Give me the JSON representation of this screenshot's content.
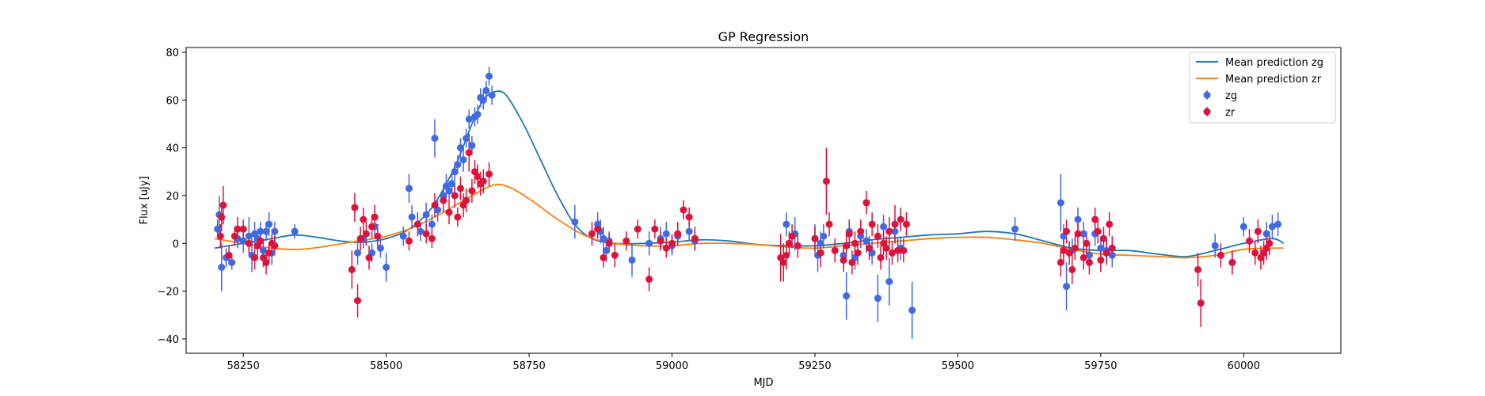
{
  "chart_data": {
    "type": "scatter",
    "title": "GP Regression",
    "xlabel": "MJD",
    "ylabel": "Flux [uJy]",
    "xlim": [
      58150,
      60170
    ],
    "ylim": [
      -46,
      82
    ],
    "xticks": [
      58250,
      58500,
      58750,
      59000,
      59250,
      59500,
      59750,
      60000
    ],
    "yticks": [
      -40,
      -20,
      0,
      20,
      40,
      60,
      80
    ],
    "grid": false,
    "legend_position": "upper right",
    "legend": [
      "Mean prediction zg",
      "Mean prediction zr",
      "zg",
      "zr"
    ],
    "colors": {
      "line_zg": "#1f77b4",
      "line_zr": "#ff7f0e",
      "points_zg": "#4169e1",
      "points_zr": "#dc143c"
    },
    "lines": [
      {
        "name": "Mean prediction zg",
        "x": [
          58200,
          58250,
          58300,
          58340,
          58380,
          58420,
          58460,
          58500,
          58540,
          58580,
          58620,
          58650,
          58670,
          58690,
          58710,
          58740,
          58770,
          58800,
          58830,
          58860,
          58900,
          58950,
          59000,
          59050,
          59100,
          59150,
          59200,
          59250,
          59300,
          59350,
          59400,
          59450,
          59500,
          59550,
          59600,
          59650,
          59700,
          59750,
          59800,
          59850,
          59900,
          59950,
          60000,
          60050,
          60070
        ],
        "y": [
          -2,
          0,
          2,
          3.5,
          2.5,
          1,
          0.5,
          2,
          6,
          15,
          32,
          50,
          60,
          63.5,
          62,
          50,
          35,
          20,
          8,
          2,
          0,
          0,
          0.5,
          1.5,
          1,
          -0.5,
          -1,
          -1,
          0,
          1.5,
          2.5,
          3.5,
          4,
          5,
          4,
          1,
          -2,
          -3,
          -3,
          -4.5,
          -5.5,
          -3,
          0,
          2,
          0
        ]
      },
      {
        "name": "Mean prediction zr",
        "x": [
          58200,
          58250,
          58300,
          58350,
          58400,
          58450,
          58500,
          58550,
          58600,
          58650,
          58690,
          58720,
          58760,
          58800,
          58850,
          58900,
          58950,
          59000,
          59050,
          59100,
          59150,
          59200,
          59250,
          59300,
          59350,
          59400,
          59450,
          59500,
          59550,
          59600,
          59650,
          59700,
          59750,
          59800,
          59850,
          59900,
          59950,
          60000,
          60050,
          60070
        ],
        "y": [
          2,
          0,
          -2,
          -2.5,
          -1,
          1,
          3,
          7,
          13,
          20,
          24.5,
          23,
          17,
          10,
          3,
          0,
          -1,
          -1,
          0,
          0,
          -0.5,
          -1.5,
          -2,
          -1,
          0,
          1,
          2,
          2.5,
          2.5,
          1.5,
          0,
          -2.5,
          -4.5,
          -5,
          -5.5,
          -6,
          -5,
          -2.5,
          -2,
          -2
        ]
      }
    ],
    "series": [
      {
        "name": "zg",
        "x": [
          58205,
          58208,
          58212,
          58220,
          58230,
          58240,
          58250,
          58260,
          58265,
          58270,
          58275,
          58280,
          58285,
          58290,
          58295,
          58300,
          58305,
          58340,
          58450,
          58460,
          58475,
          58480,
          58490,
          58500,
          58530,
          58540,
          58545,
          58560,
          58570,
          58580,
          58585,
          58590,
          58600,
          58605,
          58610,
          58615,
          58620,
          58625,
          58630,
          58635,
          58640,
          58645,
          58650,
          58655,
          58660,
          58665,
          58670,
          58675,
          58680,
          58685,
          58830,
          58870,
          58875,
          58880,
          58885,
          58890,
          58930,
          58960,
          58980,
          58990,
          59000,
          59010,
          59030,
          59040,
          59200,
          59215,
          59250,
          59255,
          59260,
          59265,
          59300,
          59305,
          59310,
          59320,
          59330,
          59340,
          59350,
          59360,
          59370,
          59380,
          59390,
          59400,
          59420,
          59600,
          59680,
          59685,
          59690,
          59700,
          59710,
          59720,
          59730,
          59740,
          59750,
          59760,
          59770,
          59950,
          59980,
          60000,
          60040,
          60050,
          60060
        ],
        "y": [
          6,
          12,
          -10,
          -6,
          -8,
          2,
          1,
          3,
          -5,
          4,
          2,
          5,
          -3,
          5,
          8,
          -4,
          5,
          5,
          -4,
          2,
          -4,
          7,
          -2,
          -10,
          3,
          23,
          11,
          5,
          12,
          8,
          44,
          14,
          20,
          24,
          22,
          25,
          30,
          33,
          40,
          35,
          44,
          52,
          41,
          53,
          54,
          61,
          60,
          64,
          70,
          62,
          9,
          8,
          5,
          2,
          -3,
          1,
          -7,
          0,
          2,
          4,
          -1,
          3,
          5,
          1,
          8,
          4,
          2,
          -5,
          0,
          3,
          -5,
          -22,
          5,
          -6,
          3,
          1,
          -4,
          -23,
          7,
          -16,
          5,
          -2,
          -28,
          6,
          17,
          3,
          -18,
          -3,
          10,
          4,
          -5,
          4,
          -2,
          -3,
          -5,
          -1,
          -8,
          7,
          4,
          7,
          8
        ],
        "yerr": [
          4,
          8,
          10,
          4,
          3,
          4,
          5,
          8,
          7,
          5,
          4,
          4,
          5,
          4,
          5,
          5,
          4,
          3,
          5,
          4,
          4,
          5,
          4,
          6,
          4,
          6,
          5,
          4,
          5,
          4,
          8,
          5,
          4,
          5,
          4,
          4,
          4,
          4,
          4,
          5,
          4,
          4,
          4,
          4,
          4,
          4,
          4,
          4,
          4,
          4,
          7,
          5,
          5,
          5,
          5,
          4,
          7,
          5,
          5,
          5,
          4,
          4,
          4,
          4,
          5,
          7,
          6,
          7,
          5,
          5,
          5,
          10,
          5,
          5,
          5,
          5,
          5,
          10,
          5,
          10,
          5,
          5,
          12,
          5,
          12,
          5,
          10,
          5,
          5,
          5,
          5,
          5,
          5,
          5,
          5,
          5,
          4,
          4,
          5,
          5,
          5
        ]
      },
      {
        "name": "zr",
        "x": [
          58210,
          58212,
          58215,
          58225,
          58235,
          58240,
          58250,
          58260,
          58270,
          58275,
          58280,
          58285,
          58290,
          58295,
          58300,
          58305,
          58440,
          58445,
          58450,
          58455,
          58460,
          58465,
          58470,
          58475,
          58480,
          58485,
          58540,
          58555,
          58570,
          58580,
          58585,
          58600,
          58610,
          58620,
          58625,
          58630,
          58635,
          58640,
          58645,
          58650,
          58655,
          58660,
          58665,
          58670,
          58680,
          58860,
          58870,
          58880,
          58890,
          58900,
          58920,
          58940,
          58960,
          58970,
          58980,
          58990,
          59000,
          59010,
          59020,
          59030,
          59040,
          59190,
          59195,
          59200,
          59205,
          59210,
          59220,
          59250,
          59260,
          59270,
          59275,
          59285,
          59300,
          59305,
          59310,
          59315,
          59320,
          59325,
          59330,
          59340,
          59345,
          59350,
          59360,
          59365,
          59370,
          59375,
          59380,
          59385,
          59390,
          59395,
          59400,
          59405,
          59410,
          59680,
          59685,
          59690,
          59695,
          59700,
          59705,
          59710,
          59720,
          59725,
          59730,
          59740,
          59745,
          59750,
          59755,
          59760,
          59765,
          59770,
          59920,
          59925,
          59960,
          59980,
          60010,
          60020,
          60025,
          60030,
          60035,
          60040,
          60045
        ],
        "y": [
          3,
          11,
          16,
          -5,
          3,
          6,
          6,
          0,
          -6,
          -1,
          1,
          -6,
          -8,
          -4,
          0,
          -1,
          -11,
          15,
          -24,
          2,
          10,
          4,
          -6,
          7,
          11,
          3,
          1,
          8,
          4,
          2,
          16,
          18,
          13,
          20,
          11,
          23,
          16,
          18,
          38,
          22,
          30,
          28,
          25,
          26,
          29,
          4,
          6,
          -6,
          0,
          -5,
          1,
          6,
          -15,
          6,
          1,
          -2,
          0,
          4,
          14,
          11,
          2,
          -6,
          -8,
          -5,
          0,
          3,
          -1,
          2,
          -4,
          26,
          8,
          -3,
          -7,
          -1,
          4,
          -8,
          0,
          -4,
          5,
          17,
          -2,
          8,
          3,
          -6,
          0,
          -2,
          5,
          -4,
          8,
          -3,
          10,
          -3,
          8,
          -8,
          -3,
          5,
          -4,
          -11,
          -2,
          4,
          -6,
          0,
          -8,
          10,
          5,
          -7,
          2,
          -4,
          8,
          -2,
          -11,
          -25,
          -5,
          -8,
          1,
          -4,
          5,
          -6,
          -4,
          -2,
          0
        ],
        "yerr": [
          5,
          6,
          8,
          4,
          4,
          5,
          4,
          4,
          5,
          4,
          4,
          4,
          5,
          4,
          4,
          4,
          8,
          6,
          7,
          5,
          5,
          5,
          5,
          5,
          5,
          5,
          4,
          5,
          4,
          4,
          5,
          5,
          5,
          5,
          4,
          5,
          5,
          5,
          8,
          5,
          5,
          5,
          5,
          5,
          5,
          5,
          4,
          4,
          4,
          5,
          4,
          4,
          5,
          4,
          4,
          4,
          4,
          5,
          4,
          4,
          5,
          10,
          8,
          6,
          5,
          5,
          5,
          5,
          6,
          14,
          5,
          5,
          5,
          5,
          6,
          5,
          5,
          5,
          5,
          5,
          5,
          5,
          5,
          5,
          5,
          5,
          6,
          5,
          8,
          5,
          5,
          5,
          5,
          6,
          5,
          5,
          5,
          6,
          5,
          5,
          5,
          5,
          5,
          5,
          5,
          5,
          5,
          5,
          5,
          5,
          7,
          10,
          5,
          5,
          5,
          5,
          5,
          5,
          5,
          5,
          5
        ]
      }
    ]
  }
}
